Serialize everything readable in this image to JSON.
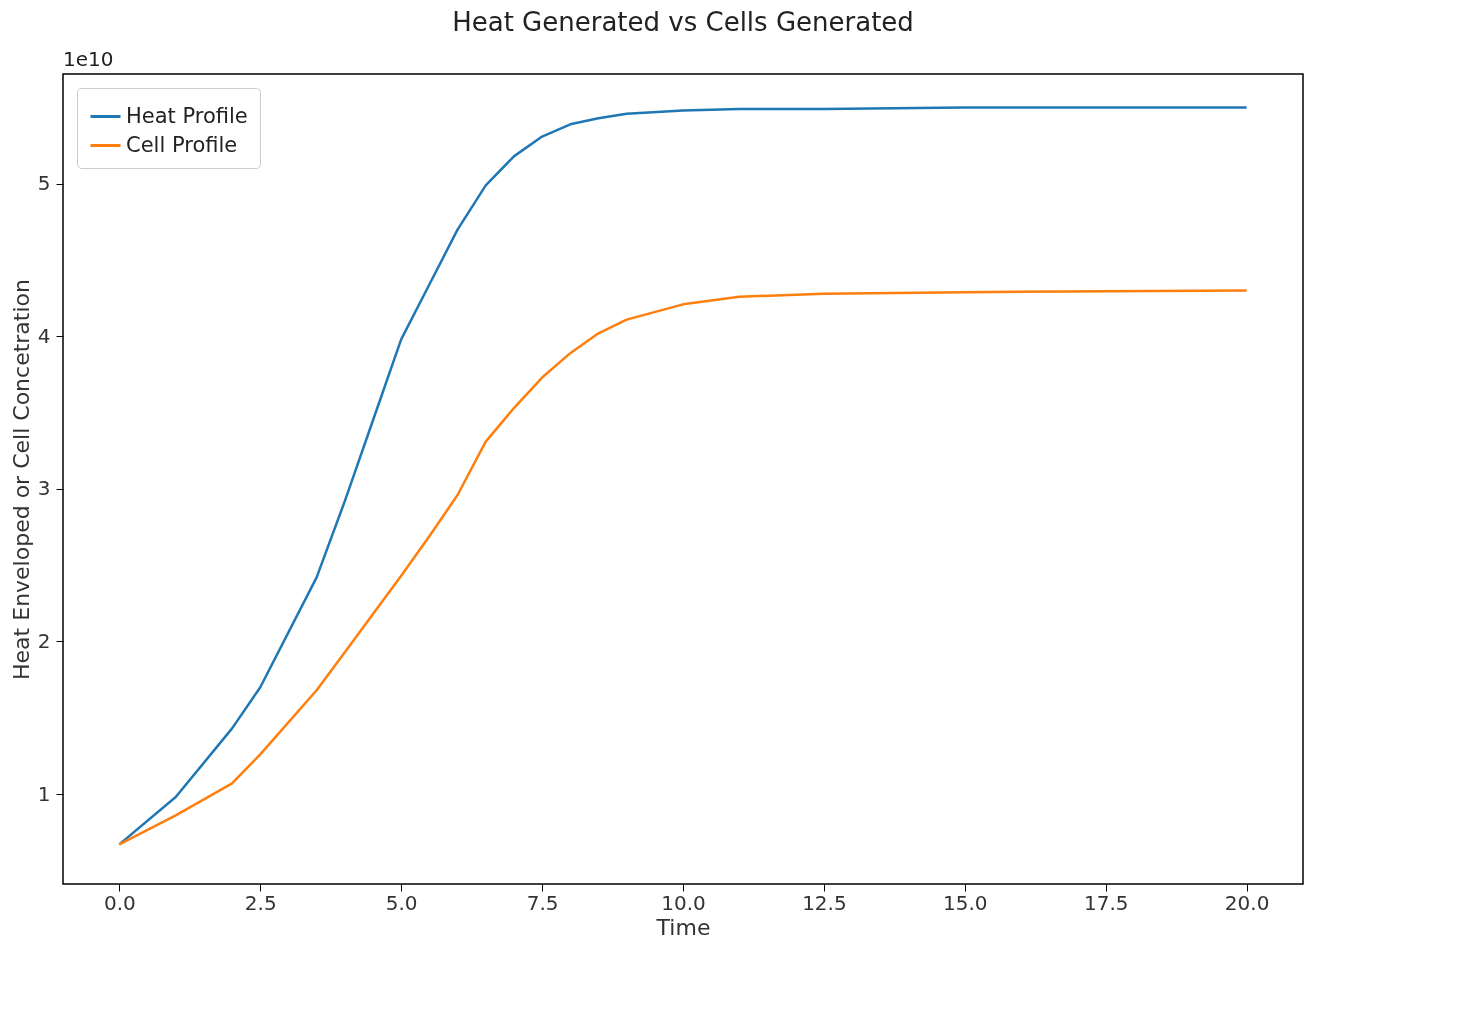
{
  "chart_data": {
    "type": "line",
    "title": "Heat Generated vs Cells Generated",
    "xlabel": "Time",
    "ylabel": "Heat Enveloped or Cell Concetration",
    "annotations": [
      "1e10"
    ],
    "x": [
      0,
      1,
      2,
      2.5,
      3.5,
      4,
      4.5,
      5,
      5.5,
      6,
      6.5,
      7,
      7.5,
      8,
      8.5,
      9,
      10,
      11,
      12.5,
      15,
      20
    ],
    "series": [
      {
        "name": "Heat Profile",
        "color": "#1f77b4",
        "values": [
          0.67,
          0.98,
          1.43,
          1.7,
          2.42,
          2.92,
          3.45,
          3.98,
          4.34,
          4.7,
          4.99,
          5.18,
          5.31,
          5.39,
          5.43,
          5.46,
          5.48,
          5.49,
          5.49,
          5.5,
          5.5
        ]
      },
      {
        "name": "Cell Profile",
        "color": "#ff7f0e",
        "values": [
          0.67,
          0.86,
          1.07,
          1.26,
          1.68,
          1.93,
          2.18,
          2.43,
          2.69,
          2.96,
          3.31,
          3.53,
          3.73,
          3.89,
          4.02,
          4.11,
          4.21,
          4.26,
          4.28,
          4.29,
          4.3
        ]
      }
    ],
    "xlim": [
      -1,
      21
    ],
    "ylim": [
      0.41,
      5.72
    ],
    "xticks": [
      {
        "value": 0,
        "label": "0.0"
      },
      {
        "value": 2.5,
        "label": "2.5"
      },
      {
        "value": 5,
        "label": "5.0"
      },
      {
        "value": 7.5,
        "label": "7.5"
      },
      {
        "value": 10,
        "label": "10.0"
      },
      {
        "value": 12.5,
        "label": "12.5"
      },
      {
        "value": 15,
        "label": "15.0"
      },
      {
        "value": 17.5,
        "label": "17.5"
      },
      {
        "value": 20,
        "label": "20.0"
      }
    ],
    "yticks": [
      1,
      2,
      3,
      4,
      5
    ],
    "legend": "top left",
    "grid": false
  }
}
